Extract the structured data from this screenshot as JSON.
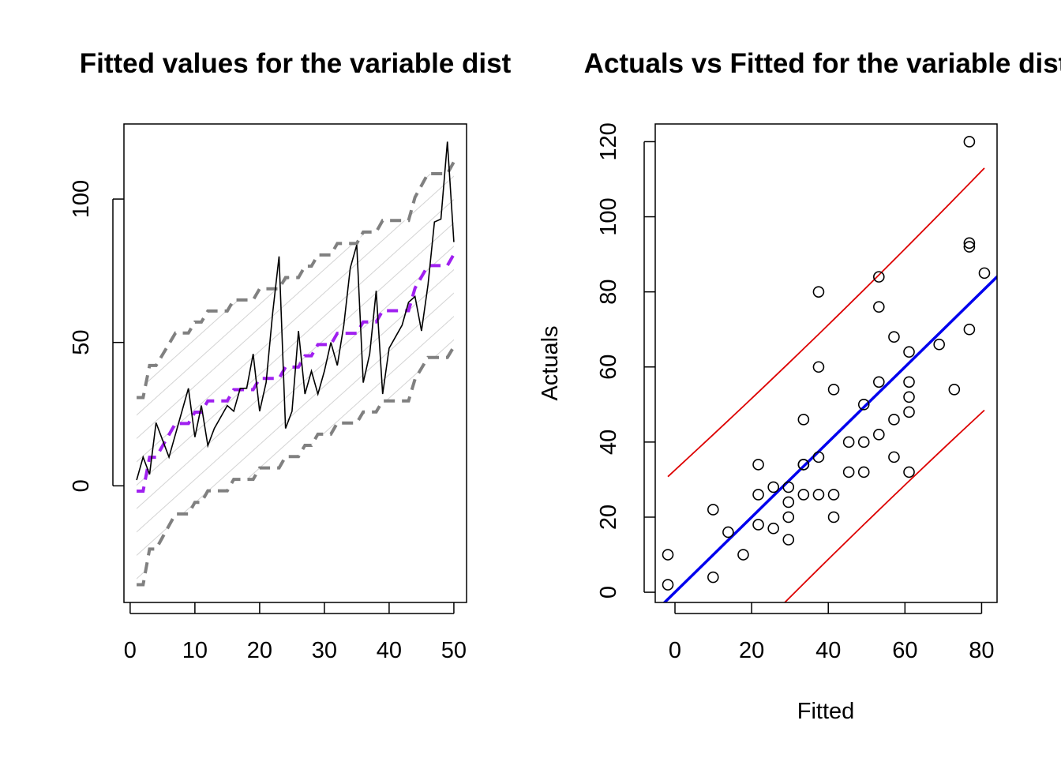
{
  "chart_data": [
    {
      "type": "line",
      "title": "Fitted values for the variable dist",
      "xlabel": "",
      "ylabel": "",
      "xlim": [
        -0.96,
        51.96
      ],
      "ylim": [
        -40.67,
        126.18
      ],
      "xticks": [
        "0",
        "10",
        "20",
        "30",
        "40",
        "50"
      ],
      "yticks": [
        "0",
        "50",
        "100"
      ],
      "grid": false,
      "colors": {
        "actual": "#000000",
        "fitted": "#a020f0",
        "interval": "#808080",
        "hatch": "#d3d3d3"
      },
      "x": [
        1,
        2,
        3,
        4,
        5,
        6,
        7,
        8,
        9,
        10,
        11,
        12,
        13,
        14,
        15,
        16,
        17,
        18,
        19,
        20,
        21,
        22,
        23,
        24,
        25,
        26,
        27,
        28,
        29,
        30,
        31,
        32,
        33,
        34,
        35,
        36,
        37,
        38,
        39,
        40,
        41,
        42,
        43,
        44,
        45,
        46,
        47,
        48,
        49,
        50
      ],
      "actual": [
        2,
        10,
        4,
        22,
        16,
        10,
        18,
        26,
        34,
        17,
        28,
        14,
        20,
        24,
        28,
        26,
        34,
        34,
        46,
        26,
        36,
        60,
        80,
        20,
        26,
        54,
        32,
        40,
        32,
        40,
        50,
        42,
        56,
        76,
        84,
        36,
        46,
        68,
        32,
        48,
        52,
        56,
        64,
        66,
        54,
        70,
        92,
        93,
        120,
        85
      ],
      "fitted": [
        -1.85,
        -1.85,
        9.95,
        9.95,
        13.88,
        17.81,
        21.74,
        21.74,
        21.74,
        25.68,
        25.68,
        29.61,
        29.61,
        29.61,
        29.61,
        33.54,
        33.54,
        33.54,
        33.54,
        37.47,
        37.47,
        37.47,
        37.47,
        41.41,
        41.41,
        41.41,
        45.34,
        45.34,
        49.27,
        49.27,
        49.27,
        53.2,
        53.2,
        53.2,
        53.2,
        57.14,
        57.14,
        57.14,
        61.07,
        61.07,
        61.07,
        61.07,
        61.07,
        68.93,
        72.87,
        76.8,
        76.8,
        76.8,
        76.8,
        80.73
      ],
      "lower": [
        -34.49,
        -34.49,
        -22.05,
        -22.05,
        -17.95,
        -13.87,
        -9.81,
        -9.81,
        -9.81,
        -5.76,
        -5.76,
        -1.74,
        -1.74,
        -1.74,
        -1.74,
        2.25,
        2.25,
        2.25,
        2.25,
        6.23,
        6.23,
        6.23,
        6.23,
        10.19,
        10.19,
        10.19,
        14.11,
        14.11,
        18.02,
        18.02,
        18.02,
        21.9,
        21.9,
        21.9,
        21.9,
        25.77,
        25.77,
        25.77,
        29.61,
        29.61,
        29.61,
        29.61,
        29.61,
        37.22,
        41.01,
        44.76,
        44.76,
        44.76,
        44.76,
        48.49
      ],
      "upper": [
        30.79,
        30.79,
        41.95,
        41.95,
        45.71,
        49.49,
        53.29,
        53.29,
        53.29,
        57.12,
        57.12,
        60.96,
        60.96,
        60.96,
        60.96,
        64.83,
        64.83,
        64.83,
        64.83,
        68.71,
        68.71,
        68.71,
        68.71,
        72.63,
        72.63,
        72.63,
        76.57,
        76.57,
        80.52,
        80.52,
        80.52,
        84.5,
        84.5,
        84.5,
        84.5,
        88.51,
        88.51,
        88.51,
        92.53,
        92.53,
        92.53,
        92.53,
        92.53,
        100.64,
        104.73,
        108.84,
        108.84,
        108.84,
        108.84,
        112.97
      ]
    },
    {
      "type": "scatter",
      "title": "Actuals vs Fitted for the variable dist",
      "xlabel": "Fitted",
      "ylabel": "Actuals",
      "xlim": [
        -5.15,
        84.03
      ],
      "ylim": [
        -2.72,
        124.72
      ],
      "xticks": [
        "0",
        "20",
        "40",
        "60",
        "80"
      ],
      "yticks": [
        "0",
        "20",
        "40",
        "60",
        "80",
        "100",
        "120"
      ],
      "grid": false,
      "colors": {
        "points": "#000000",
        "identity_line": "#0000ee",
        "bounds": "#dd0000"
      },
      "reference_line": "y = x"
    }
  ]
}
